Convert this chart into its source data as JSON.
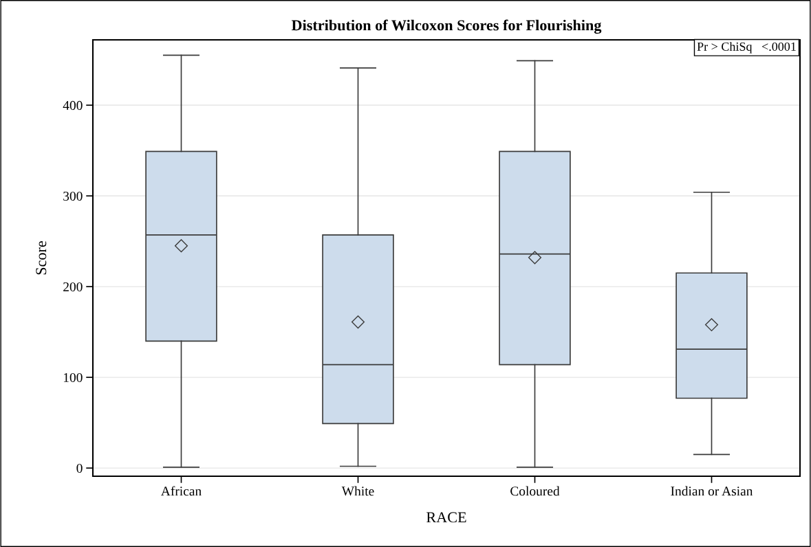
{
  "chart_data": {
    "type": "box",
    "title": "Distribution of Wilcoxon Scores for Flourishing",
    "xlabel": "RACE",
    "ylabel": "Score",
    "categories": [
      "African",
      "White",
      "Coloured",
      "Indian or Asian"
    ],
    "boxes": [
      {
        "low": 1,
        "q1": 140,
        "median": 257,
        "q3": 349,
        "high": 455,
        "mean": 245
      },
      {
        "low": 2,
        "q1": 49,
        "median": 114,
        "q3": 257,
        "high": 441,
        "mean": 161
      },
      {
        "low": 1,
        "q1": 114,
        "median": 236,
        "q3": 349,
        "high": 449,
        "mean": 232
      },
      {
        "low": 15,
        "q1": 77,
        "median": 131,
        "q3": 215,
        "high": 304,
        "mean": 158
      }
    ],
    "color": "#cddcec",
    "ylim": [
      -9,
      472
    ],
    "yticks": [
      0,
      100,
      200,
      300,
      400
    ],
    "grid": "y",
    "annotations": [
      "Pr > ChiSq   <.0001"
    ]
  }
}
